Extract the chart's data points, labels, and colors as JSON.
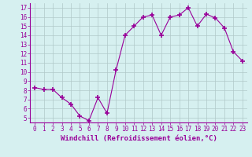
{
  "x": [
    0,
    1,
    2,
    3,
    4,
    5,
    6,
    7,
    8,
    9,
    10,
    11,
    12,
    13,
    14,
    15,
    16,
    17,
    18,
    19,
    20,
    21,
    22,
    23
  ],
  "y": [
    8.3,
    8.1,
    8.1,
    7.2,
    6.5,
    5.2,
    4.7,
    7.2,
    5.5,
    10.2,
    14.0,
    15.0,
    16.0,
    16.2,
    14.0,
    16.0,
    16.2,
    17.0,
    15.0,
    16.3,
    15.9,
    14.8,
    12.2,
    11.2
  ],
  "line_color": "#990099",
  "marker": "+",
  "marker_size": 4,
  "bg_color": "#d6f0f0",
  "grid_color": "#b0c8c8",
  "xlabel": "Windchill (Refroidissement éolien,°C)",
  "xlim": [
    -0.5,
    23.5
  ],
  "ylim": [
    4.5,
    17.5
  ],
  "yticks": [
    5,
    6,
    7,
    8,
    9,
    10,
    11,
    12,
    13,
    14,
    15,
    16,
    17
  ],
  "xticks": [
    0,
    1,
    2,
    3,
    4,
    5,
    6,
    7,
    8,
    9,
    10,
    11,
    12,
    13,
    14,
    15,
    16,
    17,
    18,
    19,
    20,
    21,
    22,
    23
  ],
  "tick_fontsize": 5.5,
  "xlabel_fontsize": 6.5,
  "label_color": "#990099"
}
